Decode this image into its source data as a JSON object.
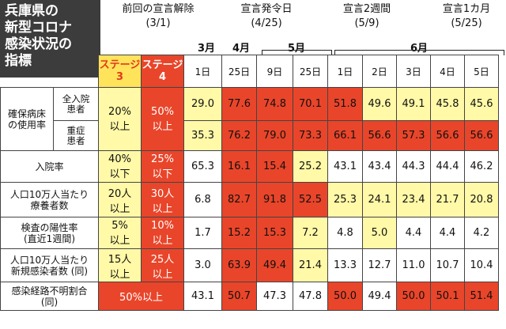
{
  "title": [
    "兵庫県の",
    "新型コロナ",
    "感染状況の",
    "指標"
  ],
  "annotations": [
    {
      "l1": "前回の宣言解除",
      "l2": "(3/1)"
    },
    {
      "l1": "宣言発令日",
      "l2": "(4/25)"
    },
    {
      "l1": "宣言2週間",
      "l2": "(5/9)"
    },
    {
      "l1": "宣言1カ月",
      "l2": "(5/25)"
    }
  ],
  "months": {
    "m3": "3月",
    "m4": "4月",
    "m5": "5月",
    "m6": "6月"
  },
  "stage_headers": {
    "s3": [
      "ステージ",
      "3"
    ],
    "s4": [
      "ステージ",
      "4"
    ]
  },
  "days": [
    "1日",
    "25日",
    "9日",
    "25日",
    "1日",
    "2日",
    "3日",
    "4日",
    "5日"
  ],
  "rows": [
    {
      "group": [
        "確保病床",
        "の使用率"
      ],
      "sub": [
        "全入院",
        "患者"
      ],
      "s3": [
        "20%",
        "以上"
      ],
      "s4": [
        "50%",
        "以上"
      ],
      "vals": [
        "29.0",
        "77.6",
        "74.8",
        "70.1",
        "51.8",
        "49.6",
        "49.1",
        "45.8",
        "45.6"
      ],
      "cls": [
        "y",
        "r",
        "r",
        "r",
        "r",
        "y",
        "y",
        "y",
        "y"
      ]
    },
    {
      "sub": [
        "重症",
        "患者"
      ],
      "vals": [
        "35.3",
        "76.2",
        "79.0",
        "73.3",
        "66.1",
        "56.6",
        "57.3",
        "56.6",
        "56.6"
      ],
      "cls": [
        "y",
        "r",
        "r",
        "r",
        "r",
        "r",
        "r",
        "r",
        "r"
      ]
    },
    {
      "label": [
        "入院率"
      ],
      "s3": [
        "40%",
        "以下"
      ],
      "s4": [
        "25%",
        "以下"
      ],
      "vals": [
        "65.3",
        "16.1",
        "15.4",
        "25.2",
        "43.1",
        "43.4",
        "44.3",
        "44.4",
        "46.2"
      ],
      "cls": [
        "w",
        "r",
        "r",
        "y",
        "w",
        "w",
        "w",
        "w",
        "w"
      ]
    },
    {
      "label": [
        "人口10万人当たり",
        "療養者数"
      ],
      "s3": [
        "20人",
        "以上"
      ],
      "s4": [
        "30人",
        "以上"
      ],
      "vals": [
        "6.8",
        "82.7",
        "91.8",
        "52.5",
        "25.3",
        "24.1",
        "23.4",
        "21.7",
        "20.8"
      ],
      "cls": [
        "w",
        "r",
        "r",
        "r",
        "y",
        "y",
        "y",
        "y",
        "y"
      ]
    },
    {
      "label": [
        "検査の陽性率",
        "(直近1週間)"
      ],
      "s3": [
        "5%",
        "以上"
      ],
      "s4": [
        "10%",
        "以上"
      ],
      "vals": [
        "1.7",
        "15.2",
        "15.3",
        "7.2",
        "4.8",
        "5.0",
        "4.4",
        "4.4",
        "4.2"
      ],
      "cls": [
        "w",
        "r",
        "r",
        "y",
        "w",
        "y",
        "w",
        "w",
        "w"
      ]
    },
    {
      "label": [
        "人口10万人当たり",
        "新規感染者数 (同)"
      ],
      "s3": [
        "15人",
        "以上"
      ],
      "s4": [
        "25人",
        "以上"
      ],
      "vals": [
        "3.0",
        "63.9",
        "49.4",
        "21.4",
        "13.3",
        "12.7",
        "11.0",
        "10.7",
        "10.4"
      ],
      "cls": [
        "w",
        "r",
        "r",
        "y",
        "w",
        "w",
        "w",
        "w",
        "w"
      ]
    },
    {
      "label": [
        "感染経路不明割合",
        "(同)"
      ],
      "merged": "50%以上",
      "vals": [
        "43.1",
        "50.7",
        "47.3",
        "47.8",
        "50.0",
        "49.4",
        "50.0",
        "50.1",
        "51.4"
      ],
      "cls": [
        "w",
        "r",
        "w",
        "w",
        "r",
        "w",
        "r",
        "r",
        "r"
      ]
    }
  ]
}
